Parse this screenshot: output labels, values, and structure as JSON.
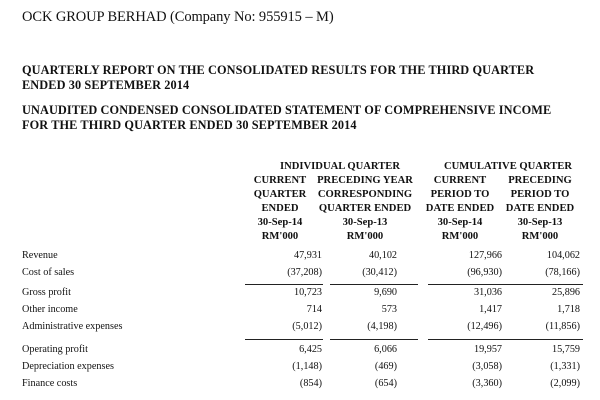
{
  "company": "OCK GROUP BERHAD (Company No: 955915 – M)",
  "title1_line1": "QUARTERLY REPORT ON THE CONSOLIDATED RESULTS FOR THE THIRD QUARTER",
  "title1_line2": "ENDED 30 SEPTEMBER 2014",
  "title2_line1": "UNAUDITED CONDENSED CONSOLIDATED STATEMENT OF COMPREHENSIVE INCOME",
  "title2_line2": "FOR THE THIRD QUARTER ENDED 30 SEPTEMBER 2014",
  "groups": {
    "individual": "INDIVIDUAL QUARTER",
    "cumulative": "CUMULATIVE QUARTER"
  },
  "columns": [
    {
      "lines": [
        "CURRENT",
        "QUARTER",
        "ENDED",
        "30-Sep-14",
        "RM'000"
      ]
    },
    {
      "lines": [
        "PRECEDING YEAR",
        "CORRESPONDING",
        "QUARTER ENDED",
        "30-Sep-13",
        "RM'000"
      ]
    },
    {
      "lines": [
        "CURRENT",
        "PERIOD TO",
        "DATE ENDED",
        "30-Sep-14",
        "RM'000"
      ]
    },
    {
      "lines": [
        "PRECEDING",
        "PERIOD TO",
        "DATE ENDED",
        "30-Sep-13",
        "RM'000"
      ]
    }
  ],
  "rows": [
    {
      "label": "Revenue",
      "values": [
        "47,931",
        "40,102",
        "127,966",
        "104,062"
      ]
    },
    {
      "label": "Cost of sales",
      "values": [
        "(37,208)",
        "(30,412)",
        "(96,930)",
        "(78,166)"
      ]
    },
    {
      "label": "Gross profit",
      "values": [
        "10,723",
        "9,690",
        "31,036",
        "25,896"
      ]
    },
    {
      "label": "Other income",
      "values": [
        "714",
        "573",
        "1,417",
        "1,718"
      ]
    },
    {
      "label": "Administrative expenses",
      "values": [
        "(5,012)",
        "(4,198)",
        "(12,496)",
        "(11,856)"
      ]
    },
    {
      "label": "Operating profit",
      "values": [
        "6,425",
        "6,066",
        "19,957",
        "15,759"
      ]
    },
    {
      "label": "Depreciation expenses",
      "values": [
        "(1,148)",
        "(469)",
        "(3,058)",
        "(1,331)"
      ]
    },
    {
      "label": "Finance costs",
      "values": [
        "(854)",
        "(654)",
        "(3,360)",
        "(2,099)"
      ]
    }
  ]
}
